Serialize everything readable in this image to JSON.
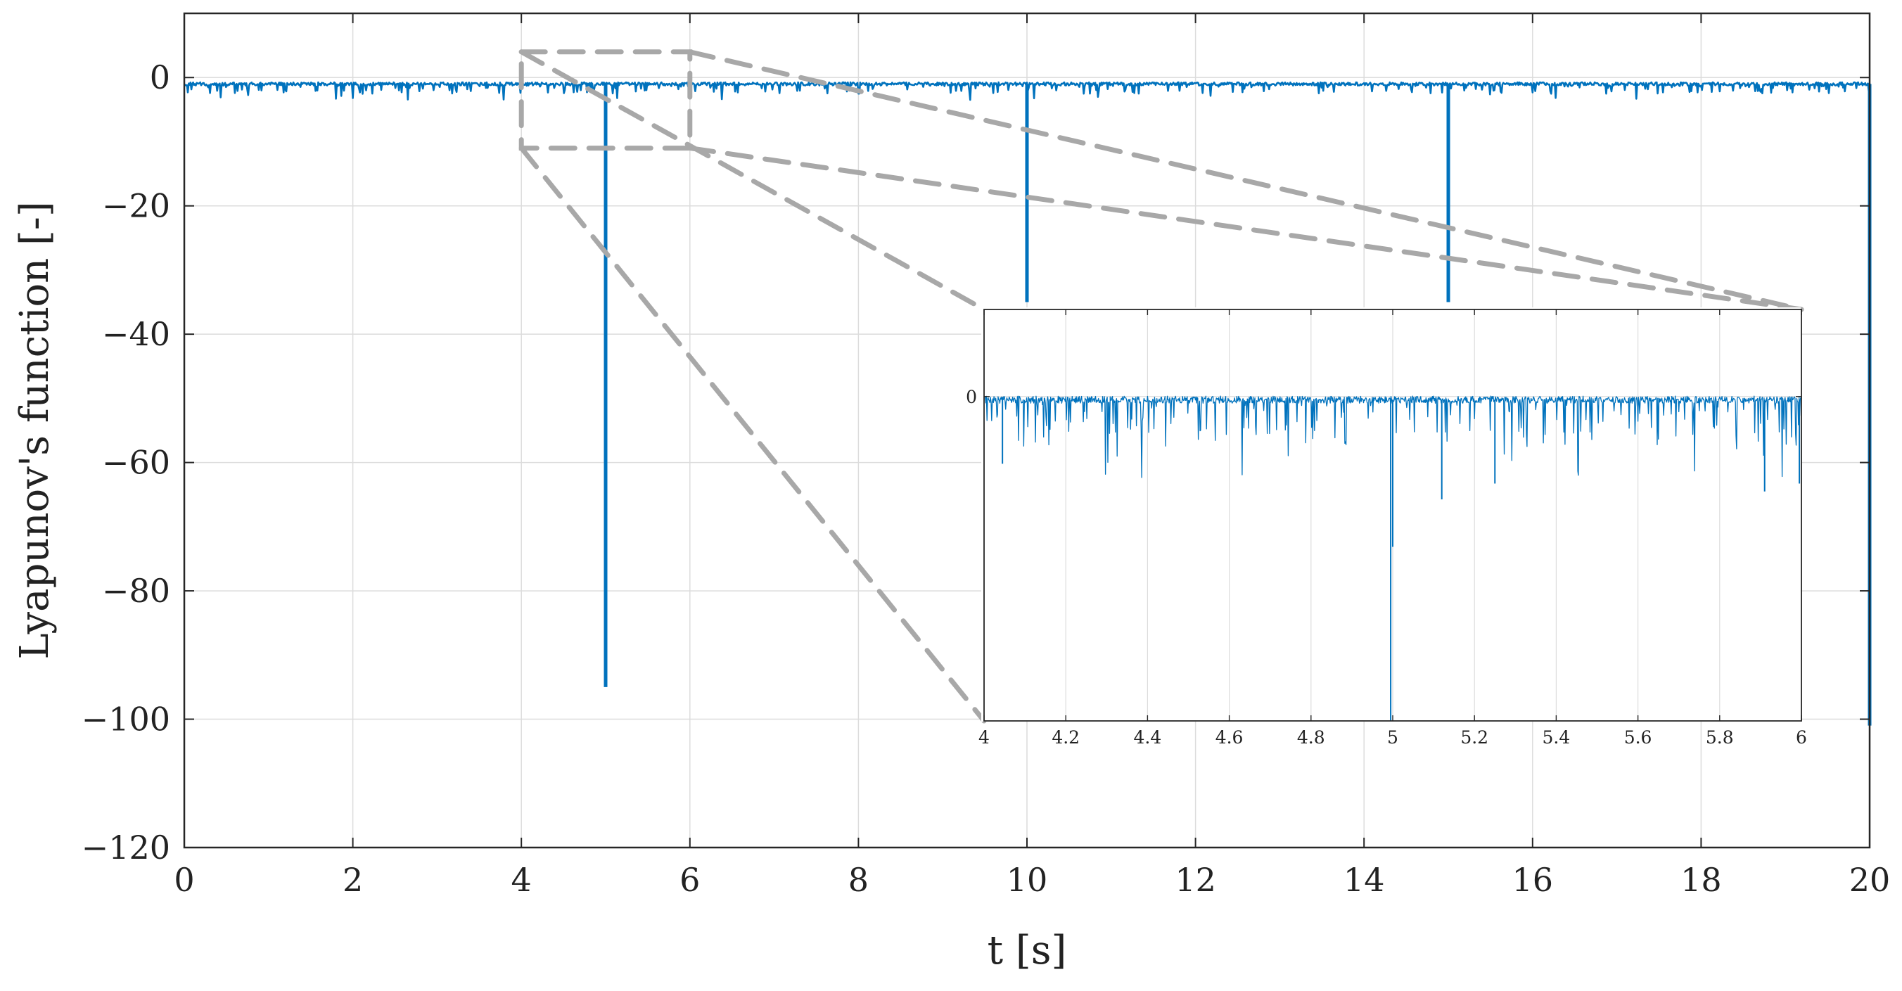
{
  "chart_data": [
    {
      "id": "main",
      "type": "line",
      "xlabel": "t [s]",
      "ylabel": "Lyapunov's function [-]",
      "xlim": [
        0,
        20
      ],
      "ylim": [
        -120,
        10
      ],
      "xticks": [
        0,
        2,
        4,
        6,
        8,
        10,
        12,
        14,
        16,
        18,
        20
      ],
      "xtick_labels": [
        "0",
        "2",
        "4",
        "6",
        "8",
        "10",
        "12",
        "14",
        "16",
        "18",
        "20"
      ],
      "yticks": [
        0,
        -20,
        -40,
        -60,
        -80,
        -100,
        -120
      ],
      "ytick_labels": [
        "0",
        "−20",
        "−40",
        "−60",
        "−80",
        "−100",
        "−120"
      ],
      "grid": true,
      "series": [
        {
          "name": "Lyapunov's function",
          "baseline": -1,
          "noise_min": -3.8,
          "spikes": [
            {
              "t": 5.0,
              "value": -95
            },
            {
              "t": 10.0,
              "value": -35
            },
            {
              "t": 15.0,
              "value": -35
            },
            {
              "t": 20.0,
              "value": -101
            }
          ]
        }
      ],
      "zoom_region": {
        "t": [
          4,
          6
        ],
        "y": [
          -11,
          4
        ]
      }
    },
    {
      "id": "inset",
      "type": "line",
      "xlim": [
        4,
        6
      ],
      "ylim": [
        -41,
        11
      ],
      "xticks": [
        4,
        4.2,
        4.4,
        4.6,
        4.8,
        5,
        5.2,
        5.4,
        5.6,
        5.8,
        6
      ],
      "xtick_labels": [
        "4",
        "4.2",
        "4.4",
        "4.6",
        "4.8",
        "5",
        "5.2",
        "5.4",
        "5.6",
        "5.8",
        "6"
      ],
      "yticks": [
        0
      ],
      "ytick_labels": [
        "0"
      ],
      "grid": true,
      "series": [
        {
          "name": "Lyapunov's function (zoom)",
          "baseline": -0.4,
          "noise_min": -11,
          "spikes": [
            {
              "t": 4.045,
              "value": -8.5
            },
            {
              "t": 4.995,
              "value": -41
            },
            {
              "t": 5.0,
              "value": -19
            },
            {
              "t": 5.12,
              "value": -13
            },
            {
              "t": 5.25,
              "value": -11
            },
            {
              "t": 5.91,
              "value": -12
            },
            {
              "t": 5.995,
              "value": -11
            }
          ]
        }
      ]
    }
  ],
  "colors": {
    "series": "#0072BD",
    "grid": "#dcdcdc",
    "axes": "#262626",
    "zoom": "#a8a8a8"
  }
}
